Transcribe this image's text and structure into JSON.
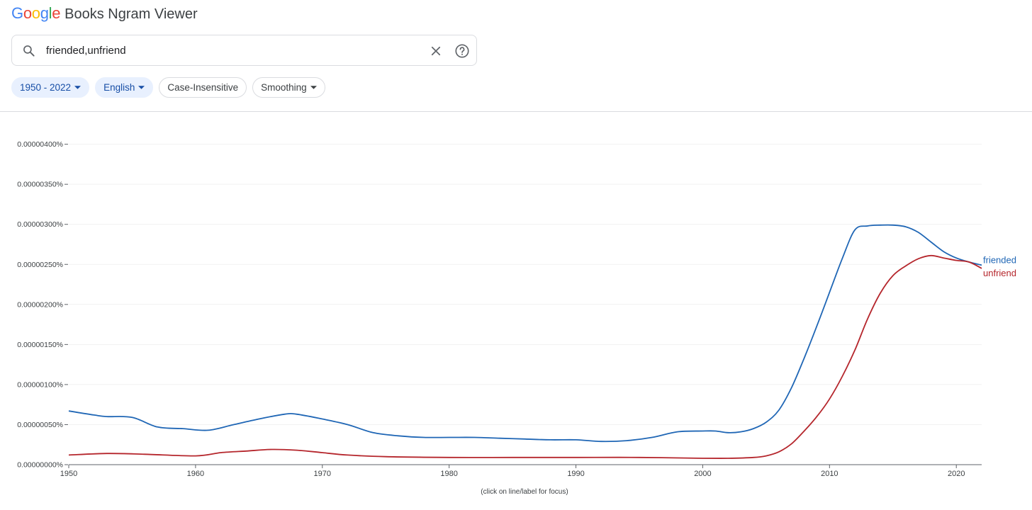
{
  "header": {
    "logo": [
      "G",
      "o",
      "o",
      "g",
      "l",
      "e"
    ],
    "app_title": "Books Ngram Viewer"
  },
  "search": {
    "value": "friended,unfriend",
    "icons": {
      "search": "search-icon",
      "clear": "close-icon",
      "help": "help-icon"
    }
  },
  "filters": {
    "years": "1950 - 2022",
    "corpus": "English",
    "case": "Case-Insensitive",
    "smoothing": "Smoothing"
  },
  "colors": {
    "friended": "#1f66b5",
    "unfriend": "#b5262c",
    "accent": "#174ea6",
    "chip_active_bg": "#e8f0fe"
  },
  "chart_data": {
    "type": "line",
    "ylim": [
      0,
      4.2e-08
    ],
    "xlim": [
      1950,
      2022
    ],
    "yticks": [
      0,
      5e-09,
      1e-08,
      1.5e-08,
      2e-08,
      2.5e-08,
      3e-08,
      3.5e-08,
      4e-08
    ],
    "ytick_labels": [
      "0.00000000%",
      "0.00000050%",
      "0.00000100%",
      "0.00000150%",
      "0.00000200%",
      "0.00000250%",
      "0.00000300%",
      "0.00000350%",
      "0.00000400%"
    ],
    "xticks": [
      1950,
      1960,
      1970,
      1980,
      1990,
      2000,
      2010,
      2020
    ],
    "xtick_labels": [
      "1950",
      "1960",
      "1970",
      "1980",
      "1990",
      "2000",
      "2010",
      "2020"
    ],
    "grid": true,
    "note": "(click on line/label for focus)",
    "series": [
      {
        "name": "friended",
        "x": [
          1950,
          1952,
          1953,
          1955,
          1957,
          1959,
          1961,
          1963,
          1965,
          1967,
          1968,
          1970,
          1972,
          1974,
          1976,
          1978,
          1980,
          1982,
          1984,
          1986,
          1988,
          1990,
          1992,
          1994,
          1996,
          1998,
          2000,
          2001,
          2002,
          2003,
          2004,
          2005,
          2006,
          2007,
          2008,
          2009,
          2010,
          2011,
          2012,
          2013,
          2014,
          2015,
          2016,
          2017,
          2018,
          2019,
          2020,
          2021,
          2022
        ],
        "y": [
          6.7e-09,
          6.2e-09,
          6e-09,
          5.9e-09,
          4.7e-09,
          4.5e-09,
          4.3e-09,
          5e-09,
          5.7e-09,
          6.3e-09,
          6.3e-09,
          5.7e-09,
          5e-09,
          4e-09,
          3.6e-09,
          3.4e-09,
          3.4e-09,
          3.4e-09,
          3.3e-09,
          3.2e-09,
          3.1e-09,
          3.1e-09,
          2.9e-09,
          3e-09,
          3.4e-09,
          4.1e-09,
          4.2e-09,
          4.2e-09,
          4e-09,
          4.1e-09,
          4.5e-09,
          5.3e-09,
          6.8e-09,
          9.6e-09,
          1.33e-08,
          1.73e-08,
          2.15e-08,
          2.57e-08,
          2.93e-08,
          2.98e-08,
          2.99e-08,
          2.99e-08,
          2.97e-08,
          2.9e-08,
          2.78e-08,
          2.66e-08,
          2.58e-08,
          2.53e-08,
          2.49e-08
        ]
      },
      {
        "name": "unfriend",
        "x": [
          1950,
          1953,
          1956,
          1960,
          1962,
          1964,
          1966,
          1968,
          1970,
          1972,
          1975,
          1980,
          1985,
          1990,
          1995,
          2000,
          2002,
          2004,
          2005,
          2006,
          2007,
          2008,
          2009,
          2010,
          2011,
          2012,
          2013,
          2014,
          2015,
          2016,
          2017,
          2018,
          2019,
          2020,
          2021,
          2022
        ],
        "y": [
          1.2e-09,
          1.4e-09,
          1.3e-09,
          1.1e-09,
          1.5e-09,
          1.7e-09,
          1.9e-09,
          1.8e-09,
          1.5e-09,
          1.2e-09,
          1e-09,
          9e-10,
          9e-10,
          9e-10,
          9e-10,
          8e-10,
          8e-10,
          9e-10,
          1.1e-09,
          1.6e-09,
          2.6e-09,
          4.2e-09,
          6e-09,
          8.2e-09,
          1.1e-08,
          1.43e-08,
          1.82e-08,
          2.14e-08,
          2.36e-08,
          2.48e-08,
          2.57e-08,
          2.61e-08,
          2.58e-08,
          2.55e-08,
          2.53e-08,
          2.45e-08
        ]
      }
    ]
  }
}
